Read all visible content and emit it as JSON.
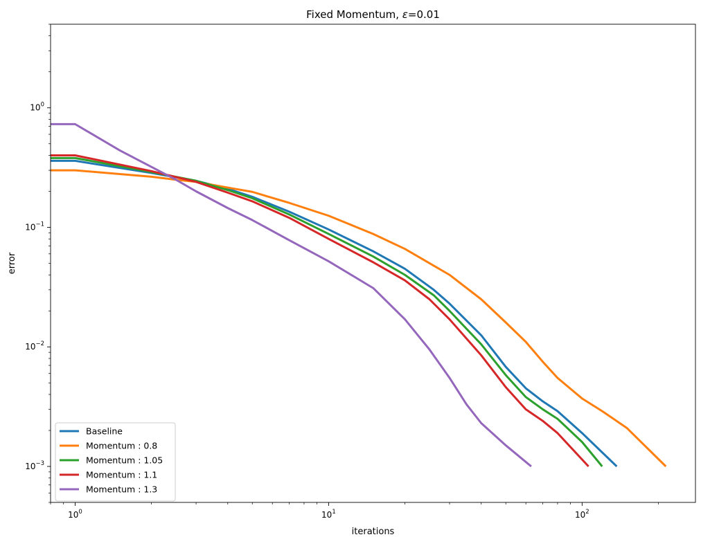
{
  "chart_data": {
    "type": "line",
    "title": "Fixed Momentum, ",
    "title_symbol": "ε",
    "title_suffix": "=0.01",
    "xlabel": "iterations",
    "ylabel": "error",
    "xscale": "log",
    "yscale": "log",
    "xlim": [
      0.8,
      280
    ],
    "ylim": [
      0.0005,
      5
    ],
    "x_ticks": [
      {
        "value": 1,
        "base": "10",
        "exp": "0"
      },
      {
        "value": 10,
        "base": "10",
        "exp": "1"
      },
      {
        "value": 100,
        "base": "10",
        "exp": "2"
      }
    ],
    "y_ticks": [
      {
        "value": 0.001,
        "base": "10",
        "exp": "−3"
      },
      {
        "value": 0.01,
        "base": "10",
        "exp": "−2"
      },
      {
        "value": 0.1,
        "base": "10",
        "exp": "−1"
      },
      {
        "value": 1,
        "base": "10",
        "exp": "0"
      }
    ],
    "grid": false,
    "legend_position": "lower-left",
    "series": [
      {
        "name": "Baseline",
        "color": "#1f77b4",
        "points": [
          [
            0.8,
            0.36
          ],
          [
            1,
            0.36
          ],
          [
            2,
            0.285
          ],
          [
            3,
            0.245
          ],
          [
            4,
            0.21
          ],
          [
            5,
            0.18
          ],
          [
            7,
            0.135
          ],
          [
            10,
            0.096
          ],
          [
            15,
            0.063
          ],
          [
            20,
            0.045
          ],
          [
            26,
            0.03
          ],
          [
            30,
            0.023
          ],
          [
            40,
            0.0125
          ],
          [
            50,
            0.0068
          ],
          [
            60,
            0.0045
          ],
          [
            70,
            0.0035
          ],
          [
            80,
            0.0029
          ],
          [
            100,
            0.0019
          ],
          [
            137,
            0.001
          ]
        ]
      },
      {
        "name": "Momentum : 0.8",
        "color": "#ff7f0e",
        "points": [
          [
            0.8,
            0.3
          ],
          [
            1,
            0.3
          ],
          [
            2,
            0.265
          ],
          [
            2.5,
            0.25
          ],
          [
            3,
            0.24
          ],
          [
            4,
            0.215
          ],
          [
            5,
            0.198
          ],
          [
            7,
            0.16
          ],
          [
            10,
            0.125
          ],
          [
            15,
            0.088
          ],
          [
            20,
            0.066
          ],
          [
            30,
            0.04
          ],
          [
            40,
            0.025
          ],
          [
            50,
            0.016
          ],
          [
            60,
            0.011
          ],
          [
            70,
            0.0075
          ],
          [
            80,
            0.0055
          ],
          [
            100,
            0.0037
          ],
          [
            120,
            0.0029
          ],
          [
            150,
            0.0021
          ],
          [
            214,
            0.001
          ]
        ]
      },
      {
        "name": "Momentum : 1.05",
        "color": "#2ca02c",
        "points": [
          [
            0.8,
            0.38
          ],
          [
            1,
            0.38
          ],
          [
            2,
            0.29
          ],
          [
            3,
            0.245
          ],
          [
            4,
            0.205
          ],
          [
            5,
            0.175
          ],
          [
            7,
            0.128
          ],
          [
            10,
            0.088
          ],
          [
            15,
            0.057
          ],
          [
            20,
            0.04
          ],
          [
            26,
            0.027
          ],
          [
            30,
            0.02
          ],
          [
            40,
            0.0105
          ],
          [
            50,
            0.0058
          ],
          [
            60,
            0.0038
          ],
          [
            70,
            0.003
          ],
          [
            80,
            0.0025
          ],
          [
            100,
            0.0016
          ],
          [
            120,
            0.001
          ]
        ]
      },
      {
        "name": "Momentum : 1.1",
        "color": "#d62728",
        "points": [
          [
            0.8,
            0.4
          ],
          [
            1,
            0.4
          ],
          [
            2,
            0.295
          ],
          [
            3,
            0.24
          ],
          [
            4,
            0.195
          ],
          [
            5,
            0.165
          ],
          [
            7,
            0.12
          ],
          [
            10,
            0.08
          ],
          [
            15,
            0.051
          ],
          [
            20,
            0.036
          ],
          [
            25,
            0.025
          ],
          [
            30,
            0.017
          ],
          [
            40,
            0.0085
          ],
          [
            50,
            0.0046
          ],
          [
            60,
            0.003
          ],
          [
            70,
            0.0024
          ],
          [
            80,
            0.0019
          ],
          [
            106,
            0.001
          ]
        ]
      },
      {
        "name": "Momentum : 1.3",
        "color": "#9467bd",
        "points": [
          [
            0.8,
            0.73
          ],
          [
            1,
            0.73
          ],
          [
            1.5,
            0.44
          ],
          [
            2,
            0.32
          ],
          [
            2.5,
            0.25
          ],
          [
            3,
            0.2
          ],
          [
            4,
            0.145
          ],
          [
            5,
            0.115
          ],
          [
            7,
            0.078
          ],
          [
            10,
            0.052
          ],
          [
            15,
            0.031
          ],
          [
            20,
            0.017
          ],
          [
            25,
            0.0095
          ],
          [
            30,
            0.0055
          ],
          [
            35,
            0.0033
          ],
          [
            40,
            0.0023
          ],
          [
            50,
            0.0015
          ],
          [
            63,
            0.001
          ]
        ]
      }
    ]
  }
}
